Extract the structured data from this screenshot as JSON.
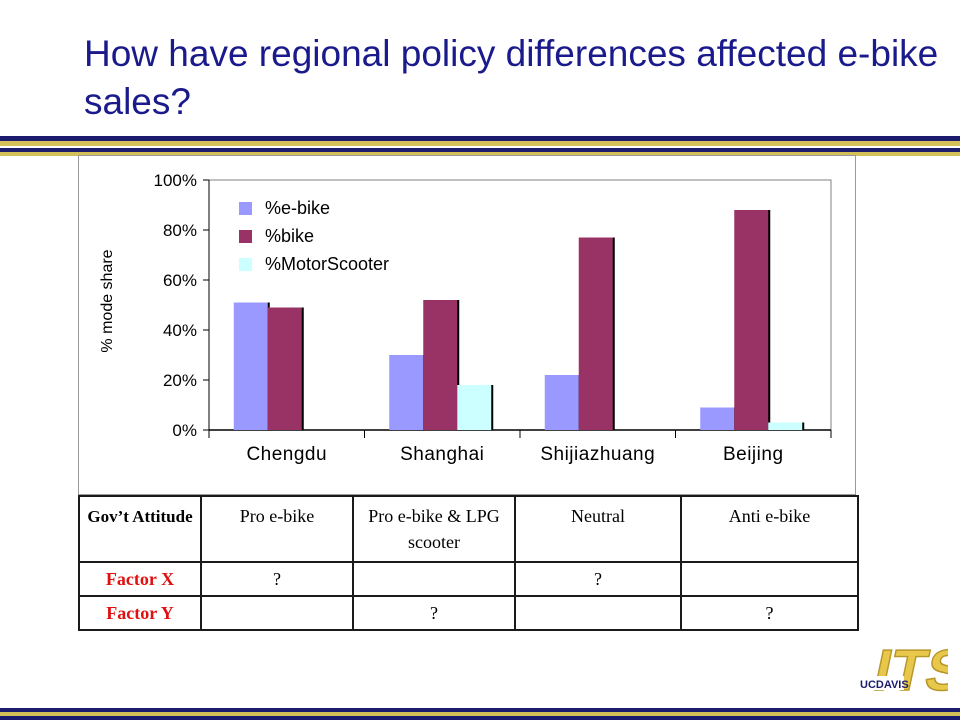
{
  "slide": {
    "title": "How have regional policy differences affected e-bike sales?",
    "colors": {
      "title": "#1a1a8c",
      "band_navy": "#1c1c6e",
      "band_gold": "#d4c058"
    }
  },
  "chart_data": {
    "type": "bar",
    "categories": [
      "Chengdu",
      "Shanghai",
      "Shijiazhuang",
      "Beijing"
    ],
    "series": [
      {
        "name": "%e-bike",
        "color": "#9999ff",
        "values": [
          51,
          30,
          22,
          9
        ]
      },
      {
        "name": "%bike",
        "color": "#993366",
        "values": [
          49,
          52,
          77,
          88
        ]
      },
      {
        "name": "%MotorScooter",
        "color": "#ccffff",
        "values": [
          0,
          18,
          0,
          3
        ]
      }
    ],
    "ylabel": "% mode share",
    "xlabel": "",
    "ylim": [
      0,
      100
    ],
    "yticks": [
      "0%",
      "20%",
      "40%",
      "60%",
      "80%",
      "100%"
    ],
    "legend": "top-left",
    "grid": false
  },
  "table": {
    "header": [
      "Gov’t Attitude",
      "Pro e-bike",
      "Pro e-bike & LPG scooter",
      "Neutral",
      "Anti e-bike"
    ],
    "rows": [
      {
        "label": "Factor X",
        "cells": [
          "?",
          "",
          "?",
          ""
        ]
      },
      {
        "label": "Factor Y",
        "cells": [
          "",
          "?",
          "",
          "?"
        ]
      }
    ]
  },
  "logo": {
    "brand": "ITS",
    "sub": "UCDAVIS"
  }
}
